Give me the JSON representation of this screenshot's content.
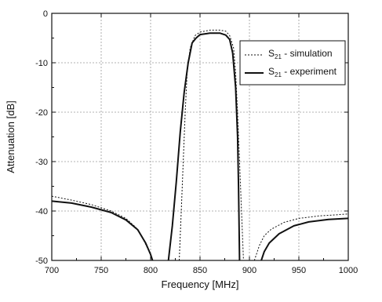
{
  "chart_data": {
    "type": "line",
    "xlabel": "Frequency [MHz]",
    "ylabel": "Attenuation [dB]",
    "xlim": [
      700,
      1000
    ],
    "ylim": [
      -50,
      0
    ],
    "xticks": [
      700,
      750,
      800,
      850,
      900,
      950,
      1000
    ],
    "yticks": [
      0,
      -10,
      -20,
      -30,
      -40,
      -50
    ],
    "grid": true,
    "legend_position": "top-right",
    "series": [
      {
        "name_main": "S",
        "name_sub": "21",
        "name_rest": " - simulation",
        "style": "dotted",
        "segments": [
          [
            [
              700,
              -37
            ],
            [
              720,
              -37.8
            ],
            [
              740,
              -38.7
            ],
            [
              760,
              -40
            ],
            [
              775,
              -41.5
            ],
            [
              785,
              -43.3
            ],
            [
              792,
              -45.5
            ],
            [
              798,
              -48
            ],
            [
              802,
              -50
            ]
          ],
          [
            [
              829,
              -50
            ],
            [
              831,
              -40
            ],
            [
              833,
              -30
            ],
            [
              835,
              -20
            ],
            [
              837,
              -12
            ],
            [
              840,
              -7
            ],
            [
              845,
              -4.5
            ],
            [
              850,
              -3.8
            ],
            [
              860,
              -3.4
            ],
            [
              870,
              -3.4
            ],
            [
              876,
              -3.6
            ],
            [
              880,
              -4.5
            ],
            [
              884,
              -7
            ],
            [
              886,
              -12
            ],
            [
              888,
              -20
            ],
            [
              890,
              -30
            ],
            [
              892,
              -40
            ],
            [
              894,
              -50
            ]
          ],
          [
            [
              905,
              -50
            ],
            [
              910,
              -47
            ],
            [
              915,
              -45
            ],
            [
              922,
              -43.7
            ],
            [
              935,
              -42.3
            ],
            [
              950,
              -41.5
            ],
            [
              970,
              -41
            ],
            [
              1000,
              -40.6
            ]
          ]
        ]
      },
      {
        "name_main": "S",
        "name_sub": "21",
        "name_rest": " - experiment",
        "style": "solid",
        "segments": [
          [
            [
              700,
              -38
            ],
            [
              720,
              -38.4
            ],
            [
              740,
              -39.2
            ],
            [
              760,
              -40.3
            ],
            [
              775,
              -41.8
            ],
            [
              787,
              -43.8
            ],
            [
              795,
              -46.5
            ],
            [
              800,
              -48.8
            ],
            [
              802,
              -50
            ]
          ],
          [
            [
              818,
              -50
            ],
            [
              822,
              -43
            ],
            [
              826,
              -34
            ],
            [
              830,
              -24
            ],
            [
              834,
              -16
            ],
            [
              838,
              -10
            ],
            [
              842,
              -6
            ],
            [
              846,
              -5
            ],
            [
              850,
              -4.3
            ],
            [
              860,
              -4
            ],
            [
              870,
              -4
            ],
            [
              876,
              -4.4
            ],
            [
              880,
              -5.3
            ],
            [
              883,
              -8
            ],
            [
              886,
              -15
            ],
            [
              888,
              -25
            ],
            [
              889,
              -35
            ],
            [
              890,
              -50
            ]
          ],
          [
            [
              912,
              -50
            ],
            [
              915,
              -48.2
            ],
            [
              920,
              -46.5
            ],
            [
              930,
              -44.6
            ],
            [
              945,
              -43
            ],
            [
              960,
              -42.2
            ],
            [
              980,
              -41.7
            ],
            [
              1000,
              -41.5
            ]
          ]
        ]
      }
    ]
  }
}
